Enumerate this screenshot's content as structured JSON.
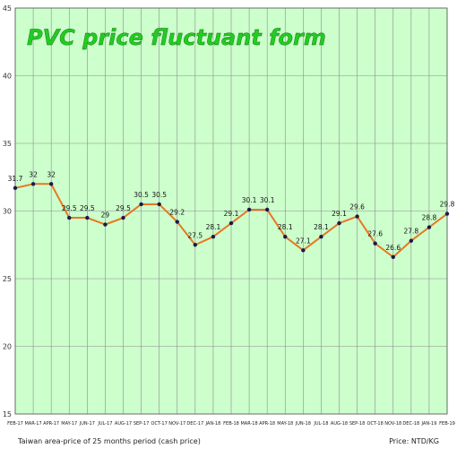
{
  "chart_data": {
    "type": "line",
    "title": "PVC price fluctuant form",
    "footnote_left": "Taiwan area-price of 25 months period (cash price)",
    "footnote_right": "Price: NTD/KG",
    "categories": [
      "FEB-17",
      "MAR-17",
      "APR-17",
      "MAY-17",
      "JUN-17",
      "JUL-17",
      "AUG-17",
      "SEP-17",
      "OCT-17",
      "NOV-17",
      "DEC-17",
      "JAN-18",
      "FEB-18",
      "MAR-18",
      "APR-18",
      "MAY-18",
      "JUN-18",
      "JUL-18",
      "AUG-18",
      "SEP-18",
      "OCT-18",
      "NOV-18",
      "DEC-18",
      "JAN-19",
      "FEB-19"
    ],
    "values": [
      31.7,
      32,
      32,
      29.5,
      29.5,
      29,
      29.5,
      30.5,
      30.5,
      29.2,
      27.5,
      28.1,
      29.1,
      30.1,
      30.1,
      28.1,
      27.1,
      28.1,
      29.1,
      29.6,
      27.6,
      26.6,
      27.8,
      28.8,
      29.8
    ],
    "ylim": [
      15,
      45
    ],
    "yticks": [
      15,
      20,
      25,
      30,
      35,
      40,
      45
    ],
    "grid": true,
    "colors": {
      "plot_background": "#ccffcc",
      "grid": "#8c8c8c",
      "line": "#e87722",
      "marker": "#1a1a4a",
      "title": "#22cc22"
    }
  }
}
